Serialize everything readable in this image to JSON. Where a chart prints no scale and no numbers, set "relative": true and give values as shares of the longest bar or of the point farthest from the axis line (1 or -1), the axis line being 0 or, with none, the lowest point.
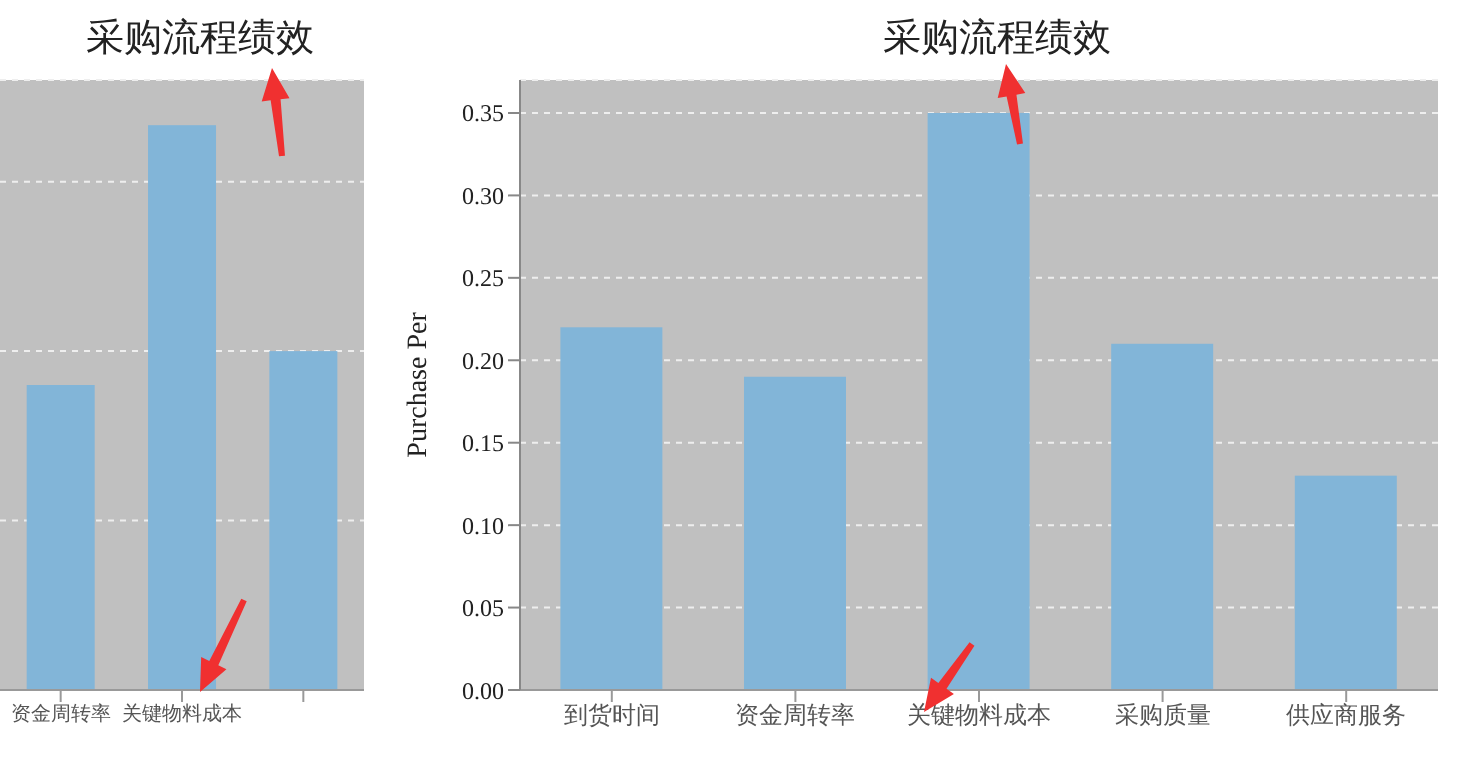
{
  "chart_data": [
    {
      "type": "bar",
      "title": "采购流程绩效",
      "categories": [
        "资金周转率",
        "关键物料成本",
        null
      ],
      "values": [
        0.54,
        1,
        0.6
      ],
      "relative": true,
      "color": "#82b5d8",
      "grid": "y"
    },
    {
      "type": "bar",
      "title": "采购流程绩效",
      "ylabel": "Purchase Per",
      "categories": [
        "到货时间",
        "资金周转率",
        "关键物料成本",
        "采购质量",
        "供应商服务"
      ],
      "values": [
        0.22,
        0.19,
        0.35,
        0.21,
        0.13
      ],
      "color": "#82b5d8",
      "ylim": [
        0,
        0.37
      ],
      "yticks": [
        {
          "value": 0,
          "label": "0.00"
        },
        0.05,
        {
          "value": 0.1,
          "label": "0.10"
        },
        0.15,
        {
          "value": 0.2,
          "label": "0.20"
        },
        0.25,
        {
          "value": 0.3,
          "label": "0.30"
        },
        0.35
      ],
      "grid": "y"
    }
  ]
}
